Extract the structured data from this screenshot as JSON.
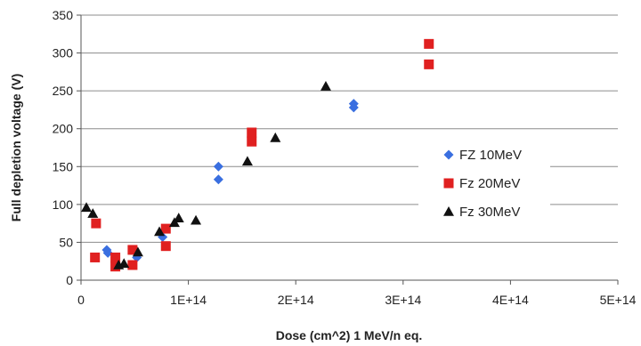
{
  "chart_data": {
    "type": "scatter",
    "xlabel": "Dose (cm^2) 1 MeV/n eq.",
    "ylabel": "Full depletion voltage (V)",
    "xlim": [
      0,
      500000000000000.0
    ],
    "ylim": [
      0,
      350
    ],
    "grid": "horizontal",
    "legend_position": "right",
    "x_tick_labels": [
      "0",
      "1E+14",
      "2E+14",
      "3E+14",
      "4E+14",
      "5E+14"
    ],
    "y_tick_labels": [
      "0",
      "50",
      "100",
      "150",
      "200",
      "250",
      "300",
      "350"
    ],
    "series": [
      {
        "name": "FZ 10MeV",
        "marker": "diamond",
        "color": "#3a6fe0",
        "points": [
          [
            24000000000000.0,
            40
          ],
          [
            25000000000000.0,
            36
          ],
          [
            52000000000000.0,
            30
          ],
          [
            76000000000000.0,
            57
          ],
          [
            128000000000000.0,
            150
          ],
          [
            128000000000000.0,
            133
          ],
          [
            254000000000000.0,
            233
          ],
          [
            254000000000000.0,
            228
          ]
        ]
      },
      {
        "name": "Fz 20MeV",
        "marker": "square",
        "color": "#e02020",
        "points": [
          [
            13000000000000.0,
            30
          ],
          [
            14000000000000.0,
            75
          ],
          [
            32000000000000.0,
            18
          ],
          [
            32000000000000.0,
            30
          ],
          [
            48000000000000.0,
            40
          ],
          [
            48000000000000.0,
            20
          ],
          [
            79000000000000.0,
            45
          ],
          [
            79000000000000.0,
            68
          ],
          [
            159000000000000.0,
            195
          ],
          [
            159000000000000.0,
            183
          ],
          [
            324000000000000.0,
            312
          ],
          [
            324000000000000.0,
            285
          ]
        ]
      },
      {
        "name": "Fz 30MeV",
        "marker": "triangle",
        "color": "#111111",
        "points": [
          [
            5000000000000.0,
            96
          ],
          [
            11000000000000.0,
            88
          ],
          [
            35000000000000.0,
            20
          ],
          [
            40000000000000.0,
            22
          ],
          [
            53000000000000.0,
            37
          ],
          [
            73000000000000.0,
            64
          ],
          [
            87000000000000.0,
            76
          ],
          [
            91000000000000.0,
            82
          ],
          [
            107000000000000.0,
            79
          ],
          [
            155000000000000.0,
            157
          ],
          [
            181000000000000.0,
            188
          ],
          [
            228000000000000.0,
            256
          ]
        ]
      }
    ]
  }
}
